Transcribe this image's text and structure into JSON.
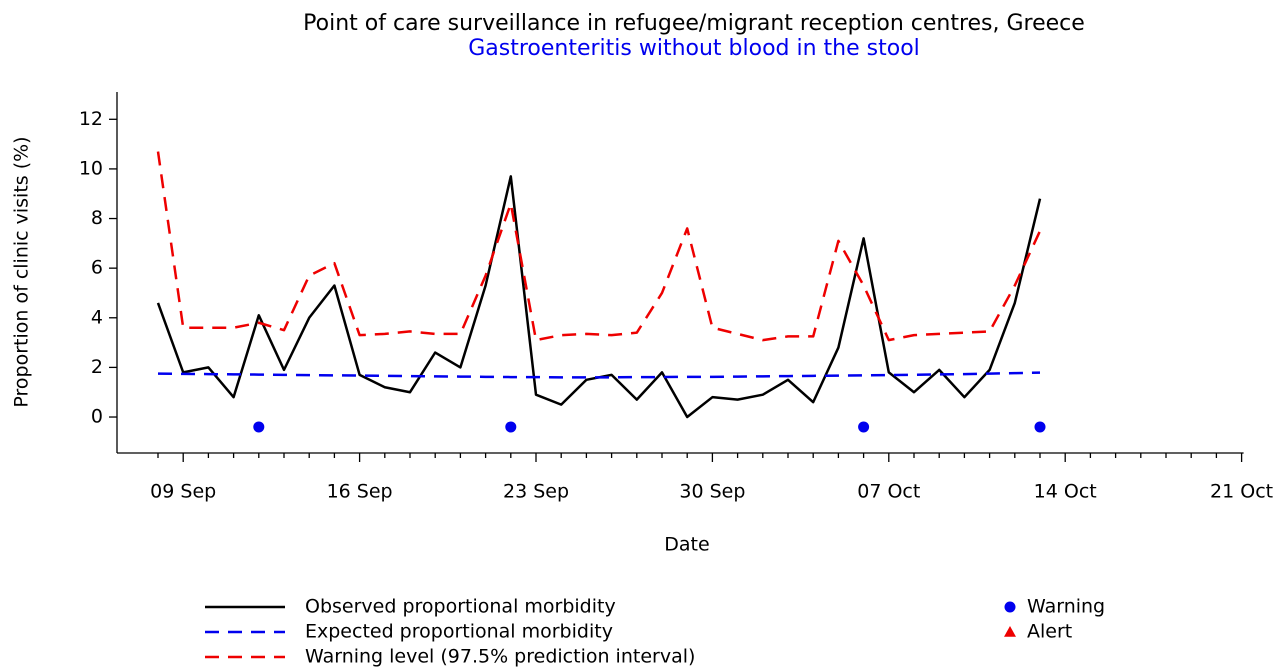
{
  "chart_data": {
    "type": "line",
    "title": "Point of care surveillance in refugee/migrant reception centres, Greece",
    "subtitle": "Gastroenteritis without blood in the stool",
    "subtitle_color": "#0000ee",
    "x_label": "Date",
    "y_label": "Proportion of clinic visits (%)",
    "categories": [
      null,
      "09 Sep",
      null,
      null,
      null,
      null,
      null,
      null,
      "16 Sep",
      null,
      null,
      null,
      null,
      null,
      null,
      "23 Sep",
      null,
      null,
      null,
      null,
      null,
      null,
      "30 Sep",
      null,
      null,
      null,
      null,
      null,
      null,
      "07 Oct",
      null,
      null,
      null,
      null,
      null,
      null,
      "14 Oct",
      null,
      null,
      null,
      null,
      null,
      null,
      "21 Oct"
    ],
    "ylim": [
      -1.45,
      13.1
    ],
    "yticks": [
      0,
      2,
      4,
      6,
      8,
      10,
      12
    ],
    "series": [
      {
        "name": "Observed proportional morbidity",
        "color": "#000000",
        "style": "solid",
        "values": [
          4.6,
          1.8,
          2.0,
          0.8,
          4.1,
          1.9,
          4.0,
          5.3,
          1.7,
          1.2,
          1.0,
          2.6,
          2.0,
          5.3,
          9.7,
          0.9,
          0.5,
          1.5,
          1.7,
          0.7,
          1.8,
          0.0,
          0.8,
          0.7,
          0.9,
          1.5,
          0.6,
          2.8,
          7.2,
          1.8,
          1.0,
          1.9,
          0.8,
          1.9,
          4.6,
          8.8,
          null,
          null,
          null,
          null,
          null,
          null,
          null,
          null
        ]
      },
      {
        "name": "Expected proportional morbidity",
        "color": "#0000ee",
        "style": "dashed",
        "values": [
          1.75,
          1.74,
          1.73,
          1.72,
          1.71,
          1.7,
          1.69,
          1.68,
          1.67,
          1.66,
          1.65,
          1.64,
          1.63,
          1.62,
          1.61,
          1.61,
          1.6,
          1.6,
          1.6,
          1.61,
          1.61,
          1.62,
          1.62,
          1.63,
          1.64,
          1.65,
          1.66,
          1.67,
          1.68,
          1.69,
          1.7,
          1.72,
          1.73,
          1.75,
          1.77,
          1.79,
          null,
          null,
          null,
          null,
          null,
          null,
          null,
          null
        ]
      },
      {
        "name": "Warning level (97.5% prediction interval)",
        "color": "#ee0000",
        "style": "dashed",
        "values": [
          10.7,
          3.6,
          3.6,
          3.6,
          3.8,
          3.5,
          5.7,
          6.2,
          3.3,
          3.35,
          3.45,
          3.35,
          3.35,
          5.7,
          8.6,
          3.1,
          3.3,
          3.35,
          3.3,
          3.4,
          5.0,
          7.6,
          3.6,
          3.35,
          3.1,
          3.25,
          3.25,
          7.1,
          5.3,
          3.1,
          3.3,
          3.35,
          3.4,
          3.45,
          5.3,
          7.5,
          null,
          null,
          null,
          null,
          null,
          null,
          null,
          null
        ]
      },
      {
        "name": "Warning",
        "color": "#0000ee",
        "style": "circle",
        "values": [
          null,
          null,
          null,
          null,
          -0.4,
          null,
          null,
          null,
          null,
          null,
          null,
          null,
          null,
          null,
          -0.4,
          null,
          null,
          null,
          null,
          null,
          null,
          null,
          null,
          null,
          null,
          null,
          null,
          null,
          -0.4,
          null,
          null,
          null,
          null,
          null,
          null,
          -0.4,
          null,
          null,
          null,
          null,
          null,
          null,
          null,
          null
        ]
      },
      {
        "name": "Alert",
        "color": "#ee0000",
        "style": "triangle",
        "values": [
          null,
          null,
          null,
          null,
          null,
          null,
          null,
          null,
          null,
          null,
          null,
          null,
          null,
          null,
          null,
          null,
          null,
          null,
          null,
          null,
          null,
          null,
          null,
          null,
          null,
          null,
          null,
          null,
          null,
          null,
          null,
          null,
          null,
          null,
          null,
          null,
          null,
          null,
          null,
          null,
          null,
          null,
          null,
          null
        ]
      }
    ]
  }
}
